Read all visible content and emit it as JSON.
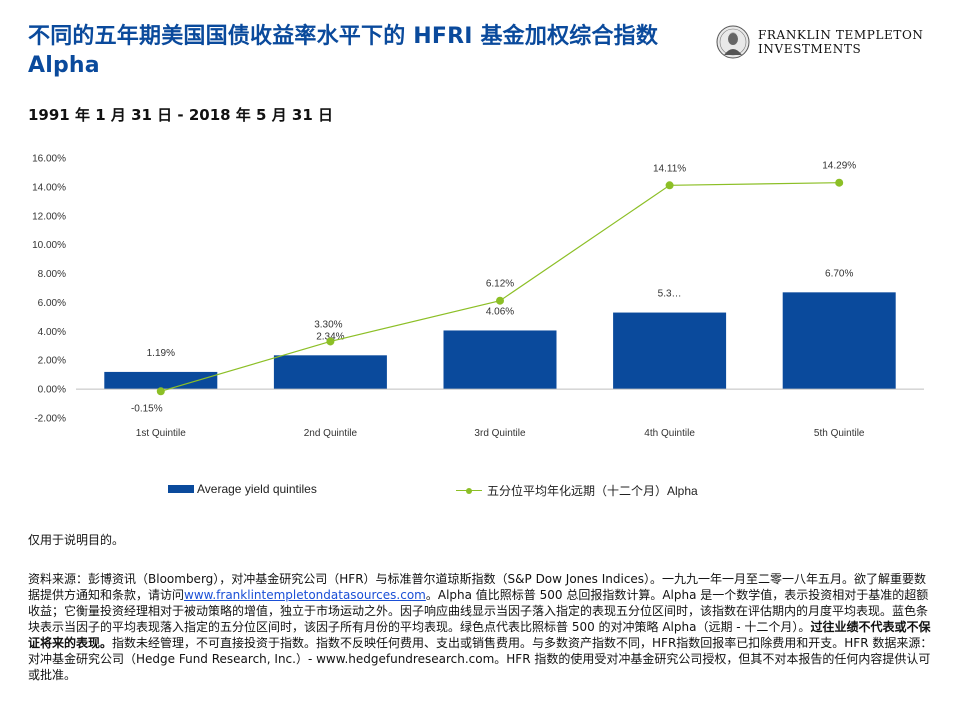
{
  "header": {
    "title": "不同的五年期美国国债收益率水平下的 HFRI 基金加权综合指数 Alpha",
    "date_range": "1991 年 1 月 31 日 - 2018 年 5 月 31 日"
  },
  "logo": {
    "line1": "FRANKLIN TEMPLETON",
    "line2": "INVESTMENTS",
    "icon": "franklin-portrait-seal-icon"
  },
  "colors": {
    "bar": "#0a4a9c",
    "line": "#8cbf26",
    "title": "#0a4a9c"
  },
  "chart_data": {
    "type": "bar",
    "categories": [
      "1st Quintile",
      "2nd Quintile",
      "3rd Quintile",
      "4th Quintile",
      "5th Quintile"
    ],
    "series": [
      {
        "name": "Average yield quintiles",
        "type": "bar",
        "values": [
          1.19,
          2.34,
          4.06,
          5.3,
          6.7
        ],
        "labels": [
          "1.19%",
          "2.34%",
          "4.06%",
          "5.3…",
          "6.70%"
        ]
      },
      {
        "name": "五分位平均年化远期（十二个月）Alpha",
        "type": "line",
        "values": [
          -0.15,
          3.3,
          6.12,
          14.11,
          14.29
        ],
        "labels": [
          "-0.15%",
          "3.30%",
          "6.12%",
          "14.11%",
          "14.29%"
        ]
      }
    ],
    "ylim": [
      -2,
      16
    ],
    "yticks": [
      -2,
      0,
      2,
      4,
      6,
      8,
      10,
      12,
      14,
      16
    ],
    "ytick_labels": [
      "-2.00%",
      "0.00%",
      "2.00%",
      "4.00%",
      "6.00%",
      "8.00%",
      "10.00%",
      "12.00%",
      "14.00%",
      "16.00%"
    ],
    "grid": false,
    "legend_position": "bottom"
  },
  "notes": {
    "illustrative": "仅用于说明目的。",
    "source_before_link": "资料来源：彭博资讯（Bloomberg），对冲基金研究公司（HFR）与标准普尔道琼斯指数（S&P Dow Jones Indices）。一九九一年一月至二零一八年五月。欲了解重要数据提供方通知和条款，请访问",
    "source_link": "www.franklintempletondatasources.com",
    "source_after_link": "。Alpha 值比照标普 500 总回报指数计算。Alpha 是一个数学值，表示投资相对于基准的超额收益；它衡量投资经理相对于被动策略的增值，独立于市场运动之外。因子响应曲线显示当因子落入指定的表现五分位区间时，该指数在评估期内的月度平均表现。蓝色条块表示当因子的平均表现落入指定的五分位区间时，该因子所有月份的平均表现。绿色点代表比照标普 500 的对冲策略 Alpha（远期 - 十二个月）。",
    "source_bold": "过往业绩不代表或不保证将来的表现。",
    "source_end": "指数未经管理，不可直接投资于指数。指数不反映任何费用、支出或销售费用。与多数资产指数不同，HFR指数回报率已扣除费用和开支。HFR 数据来源：对冲基金研究公司（Hedge Fund Research, Inc.）- www.hedgefundresearch.com。HFR 指数的使用受对冲基金研究公司授权，但其不对本报告的任何内容提供认可或批准。"
  }
}
